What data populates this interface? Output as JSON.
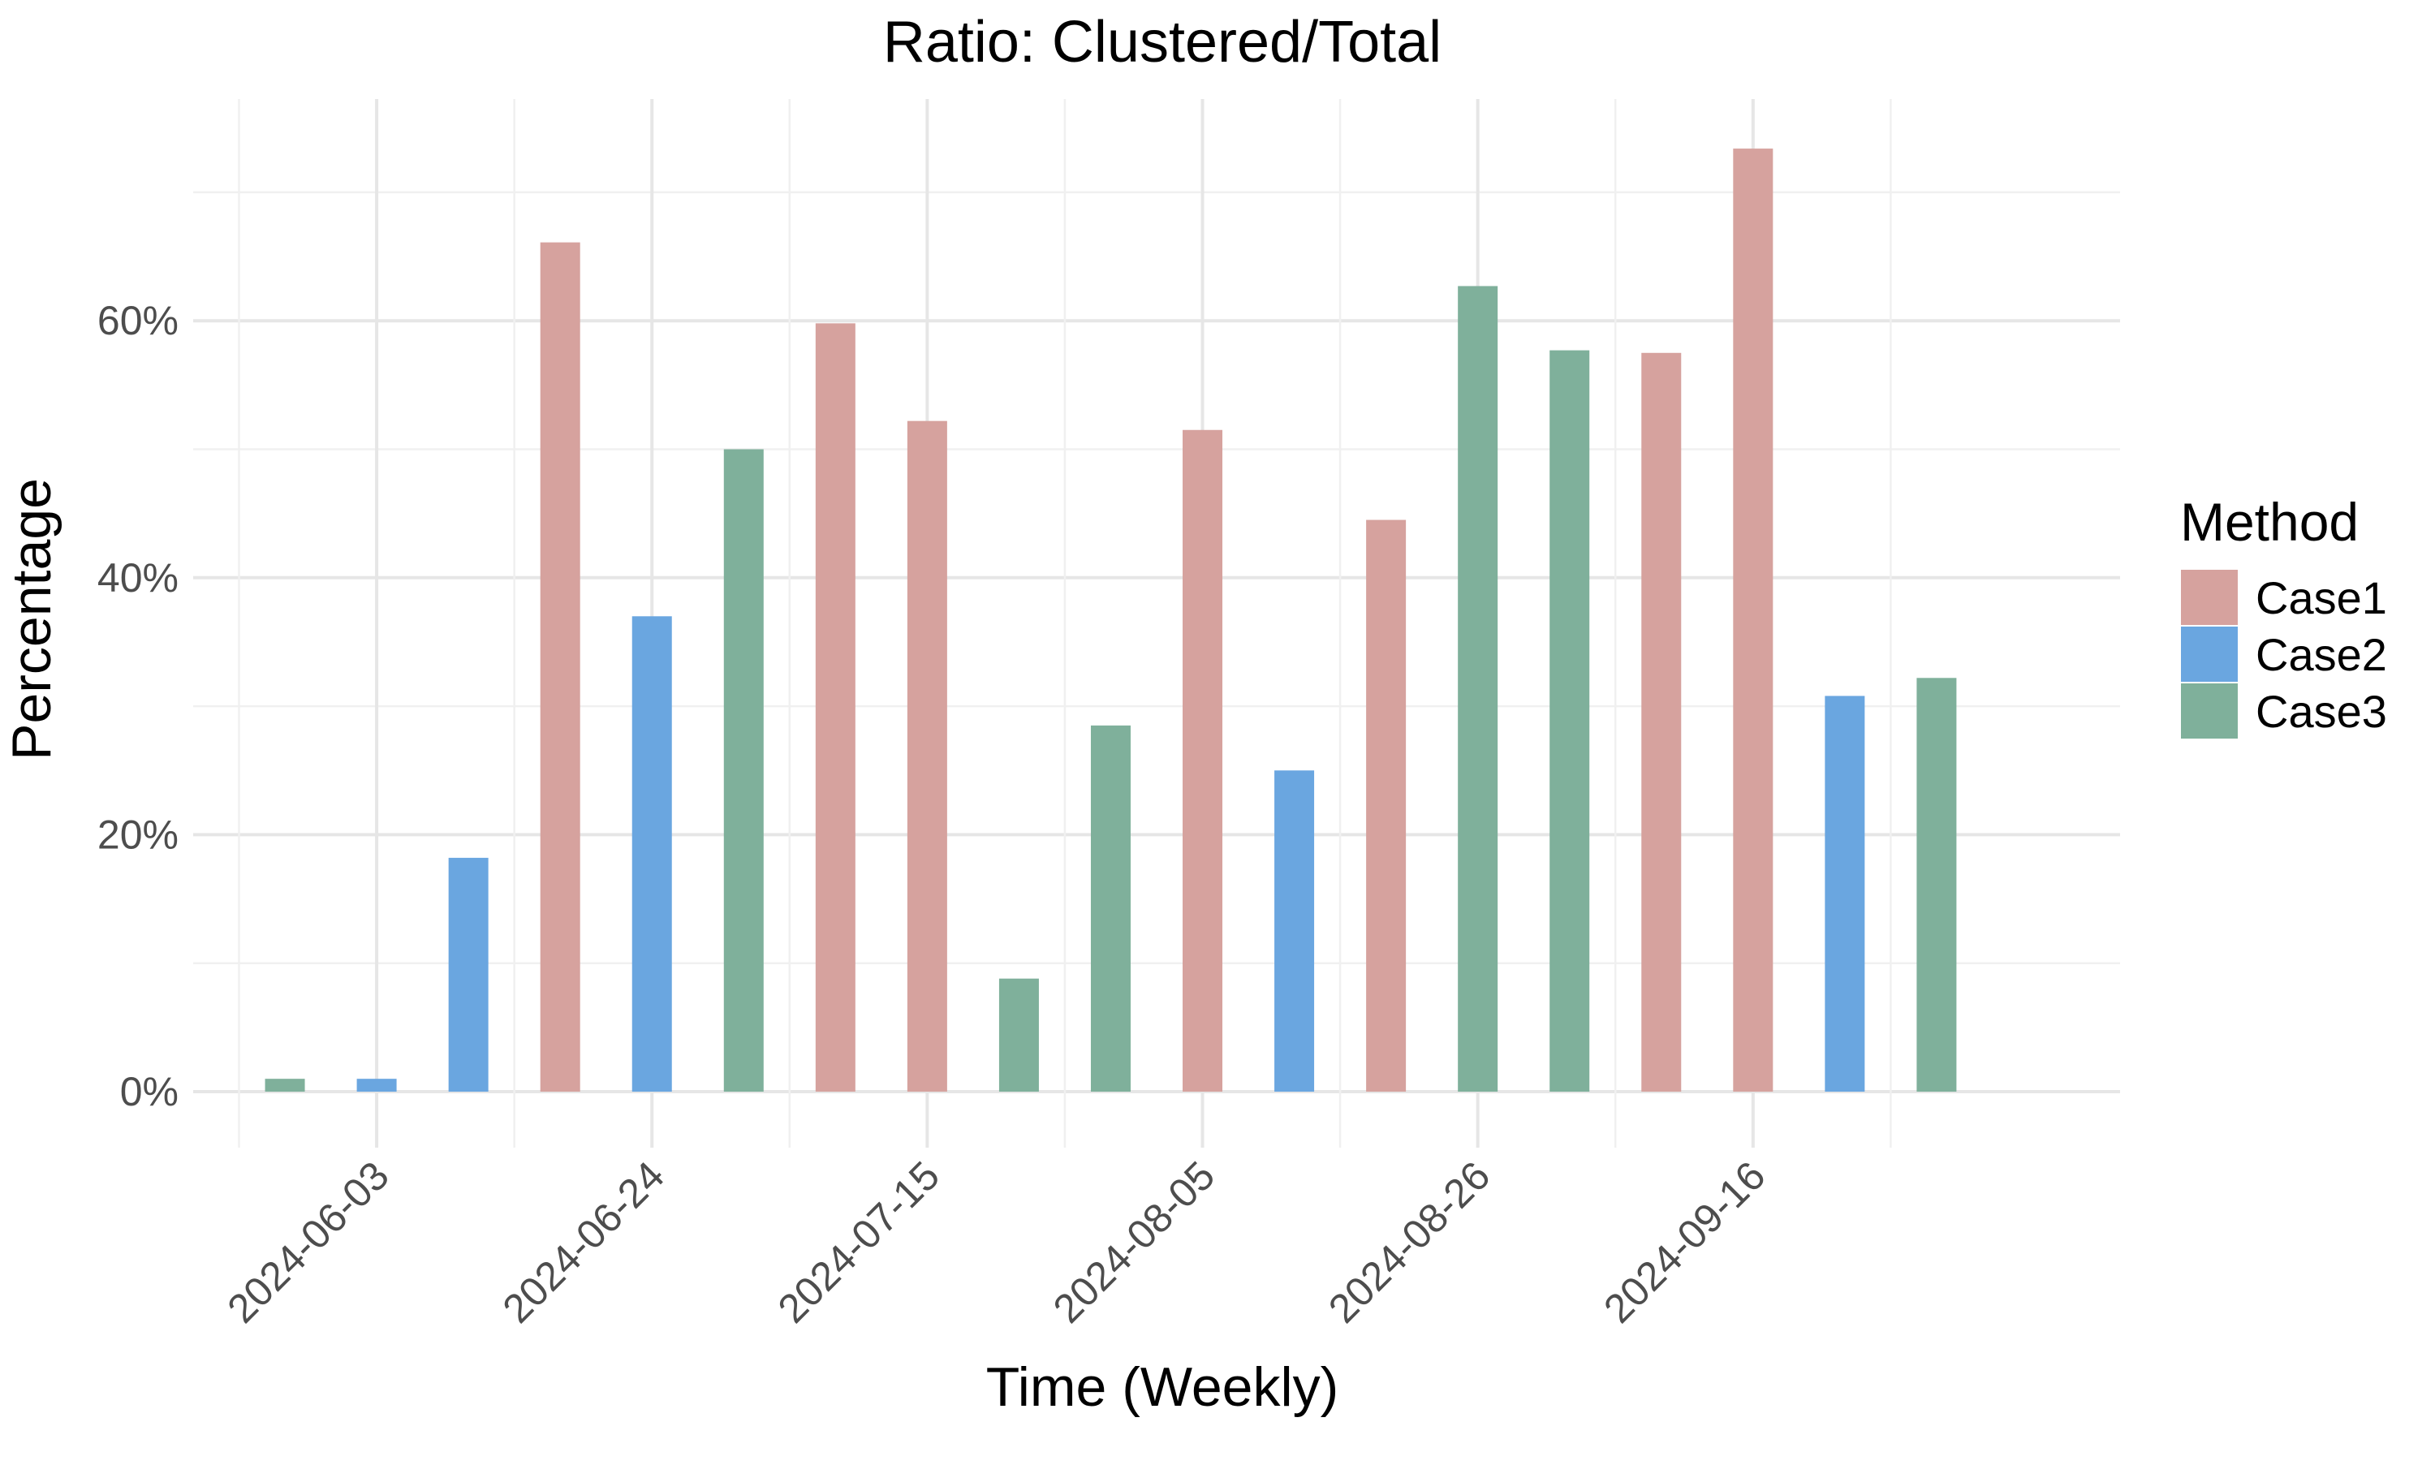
{
  "chart_data": {
    "type": "bar",
    "title": "Ratio: Clustered/Total",
    "xlabel": "Time (Weekly)",
    "ylabel": "Percentage",
    "ylim": [
      0,
      0.75
    ],
    "y_ticks": [
      0,
      0.2,
      0.4,
      0.6
    ],
    "y_tick_labels": [
      "0%",
      "20%",
      "40%",
      "60%"
    ],
    "x_date_range": [
      "2024-05-20",
      "2024-10-14"
    ],
    "x_ticks": [
      "2024-06-03",
      "2024-06-24",
      "2024-07-15",
      "2024-08-05",
      "2024-08-26",
      "2024-09-16"
    ],
    "x_tick_labels": [
      "2024-06-03",
      "2024-06-24",
      "2024-07-15",
      "2024-08-05",
      "2024-08-26",
      "2024-09-16"
    ],
    "grid": true,
    "legend": {
      "title": "Method",
      "position": "right",
      "entries": [
        "Case1",
        "Case2",
        "Case3"
      ]
    },
    "colors": {
      "Case1": "#d6a29e",
      "Case2": "#6aa6e0",
      "Case3": "#7fb09b"
    },
    "bars": [
      {
        "date": "2024-05-27",
        "method": "Case3",
        "value": 0.01
      },
      {
        "date": "2024-06-03",
        "method": "Case2",
        "value": 0.01
      },
      {
        "date": "2024-06-10",
        "method": "Case2",
        "value": 0.182
      },
      {
        "date": "2024-06-17",
        "method": "Case1",
        "value": 0.661
      },
      {
        "date": "2024-06-24",
        "method": "Case2",
        "value": 0.37
      },
      {
        "date": "2024-07-01",
        "method": "Case3",
        "value": 0.5
      },
      {
        "date": "2024-07-08",
        "method": "Case1",
        "value": 0.598
      },
      {
        "date": "2024-07-15",
        "method": "Case1",
        "value": 0.522
      },
      {
        "date": "2024-07-22",
        "method": "Case3",
        "value": 0.088
      },
      {
        "date": "2024-07-29",
        "method": "Case3",
        "value": 0.285
      },
      {
        "date": "2024-08-05",
        "method": "Case1",
        "value": 0.515
      },
      {
        "date": "2024-08-12",
        "method": "Case2",
        "value": 0.25
      },
      {
        "date": "2024-08-19",
        "method": "Case1",
        "value": 0.445
      },
      {
        "date": "2024-08-26",
        "method": "Case3",
        "value": 0.627
      },
      {
        "date": "2024-09-02",
        "method": "Case3",
        "value": 0.577
      },
      {
        "date": "2024-09-09",
        "method": "Case1",
        "value": 0.575
      },
      {
        "date": "2024-09-16",
        "method": "Case1",
        "value": 0.734
      },
      {
        "date": "2024-09-23",
        "method": "Case2",
        "value": 0.308
      },
      {
        "date": "2024-09-30",
        "method": "Case3",
        "value": 0.322
      }
    ]
  }
}
